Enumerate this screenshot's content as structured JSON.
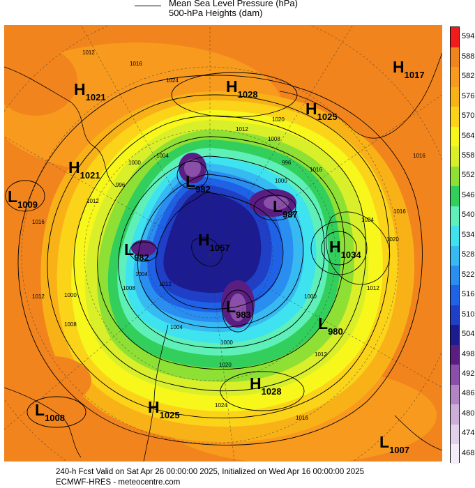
{
  "legend": {
    "line_label": "Mean Sea Level Pressure (hPa)",
    "fill_label": "500-hPa Heights (dam)"
  },
  "colorbar": {
    "levels": [
      "468",
      "474",
      "480",
      "486",
      "492",
      "498",
      "504",
      "510",
      "516",
      "522",
      "528",
      "534",
      "540",
      "546",
      "552",
      "558",
      "564",
      "570",
      "576",
      "582",
      "588",
      "594"
    ],
    "colors": [
      "#f4ecf6",
      "#e3d1ea",
      "#cdaed8",
      "#b185c4",
      "#8a4fa8",
      "#5a1e82",
      "#1c1c90",
      "#1f3fc6",
      "#1f62e6",
      "#2a8df0",
      "#37b9f2",
      "#3fe3f0",
      "#5ef0b8",
      "#33cf5c",
      "#8ee034",
      "#d9ef2a",
      "#f7f71c",
      "#fbd41a",
      "#f8b218",
      "#f79a1e",
      "#f2841d",
      "#f01c1c"
    ]
  },
  "centers": [
    {
      "type": "H",
      "value": "1021",
      "name": "high-1021-west"
    },
    {
      "type": "H",
      "value": "1028",
      "name": "high-1028-north"
    },
    {
      "type": "H",
      "value": "1017",
      "name": "high-1017-northeast"
    },
    {
      "type": "H",
      "value": "1025",
      "name": "high-1025-northeast"
    },
    {
      "type": "H",
      "value": "1021",
      "name": "high-1021-west-2"
    },
    {
      "type": "L",
      "value": "1009",
      "name": "low-1009-west"
    },
    {
      "type": "L",
      "value": "982",
      "name": "low-982-north"
    },
    {
      "type": "L",
      "value": "987",
      "name": "low-987-east"
    },
    {
      "type": "H",
      "value": "1057",
      "name": "high-1057-pole"
    },
    {
      "type": "L",
      "value": "982",
      "name": "low-982-west"
    },
    {
      "type": "H",
      "value": "1034",
      "name": "high-1034-east"
    },
    {
      "type": "L",
      "value": "983",
      "name": "low-983-south"
    },
    {
      "type": "L",
      "value": "980",
      "name": "low-980-southeast"
    },
    {
      "type": "H",
      "value": "1028",
      "name": "high-1028-south"
    },
    {
      "type": "L",
      "value": "1008",
      "name": "low-1008-southwest"
    },
    {
      "type": "H",
      "value": "1025",
      "name": "high-1025-south"
    },
    {
      "type": "L",
      "value": "1007",
      "name": "low-1007-southeast"
    }
  ],
  "isobar_labels": [
    "1012",
    "1016",
    "1024",
    "1012",
    "1020",
    "1008",
    "1000",
    "996",
    "1004",
    "1000",
    "1016",
    "1012",
    "996",
    "1004",
    "1008",
    "1012",
    "1004",
    "1024",
    "1016",
    "1020",
    "1016",
    "1012",
    "1000",
    "1000",
    "1012",
    "1016",
    "1008",
    "1016",
    "1024",
    "1020",
    "1000",
    "1012"
  ],
  "footer": {
    "line1": "240-h Fcst Valid on Sat Apr 26 00:00:00 2025, Initialized on Wed Apr 16 00:00:00 2025",
    "line2": "ECMWF-HRES  - meteocentre.com"
  }
}
